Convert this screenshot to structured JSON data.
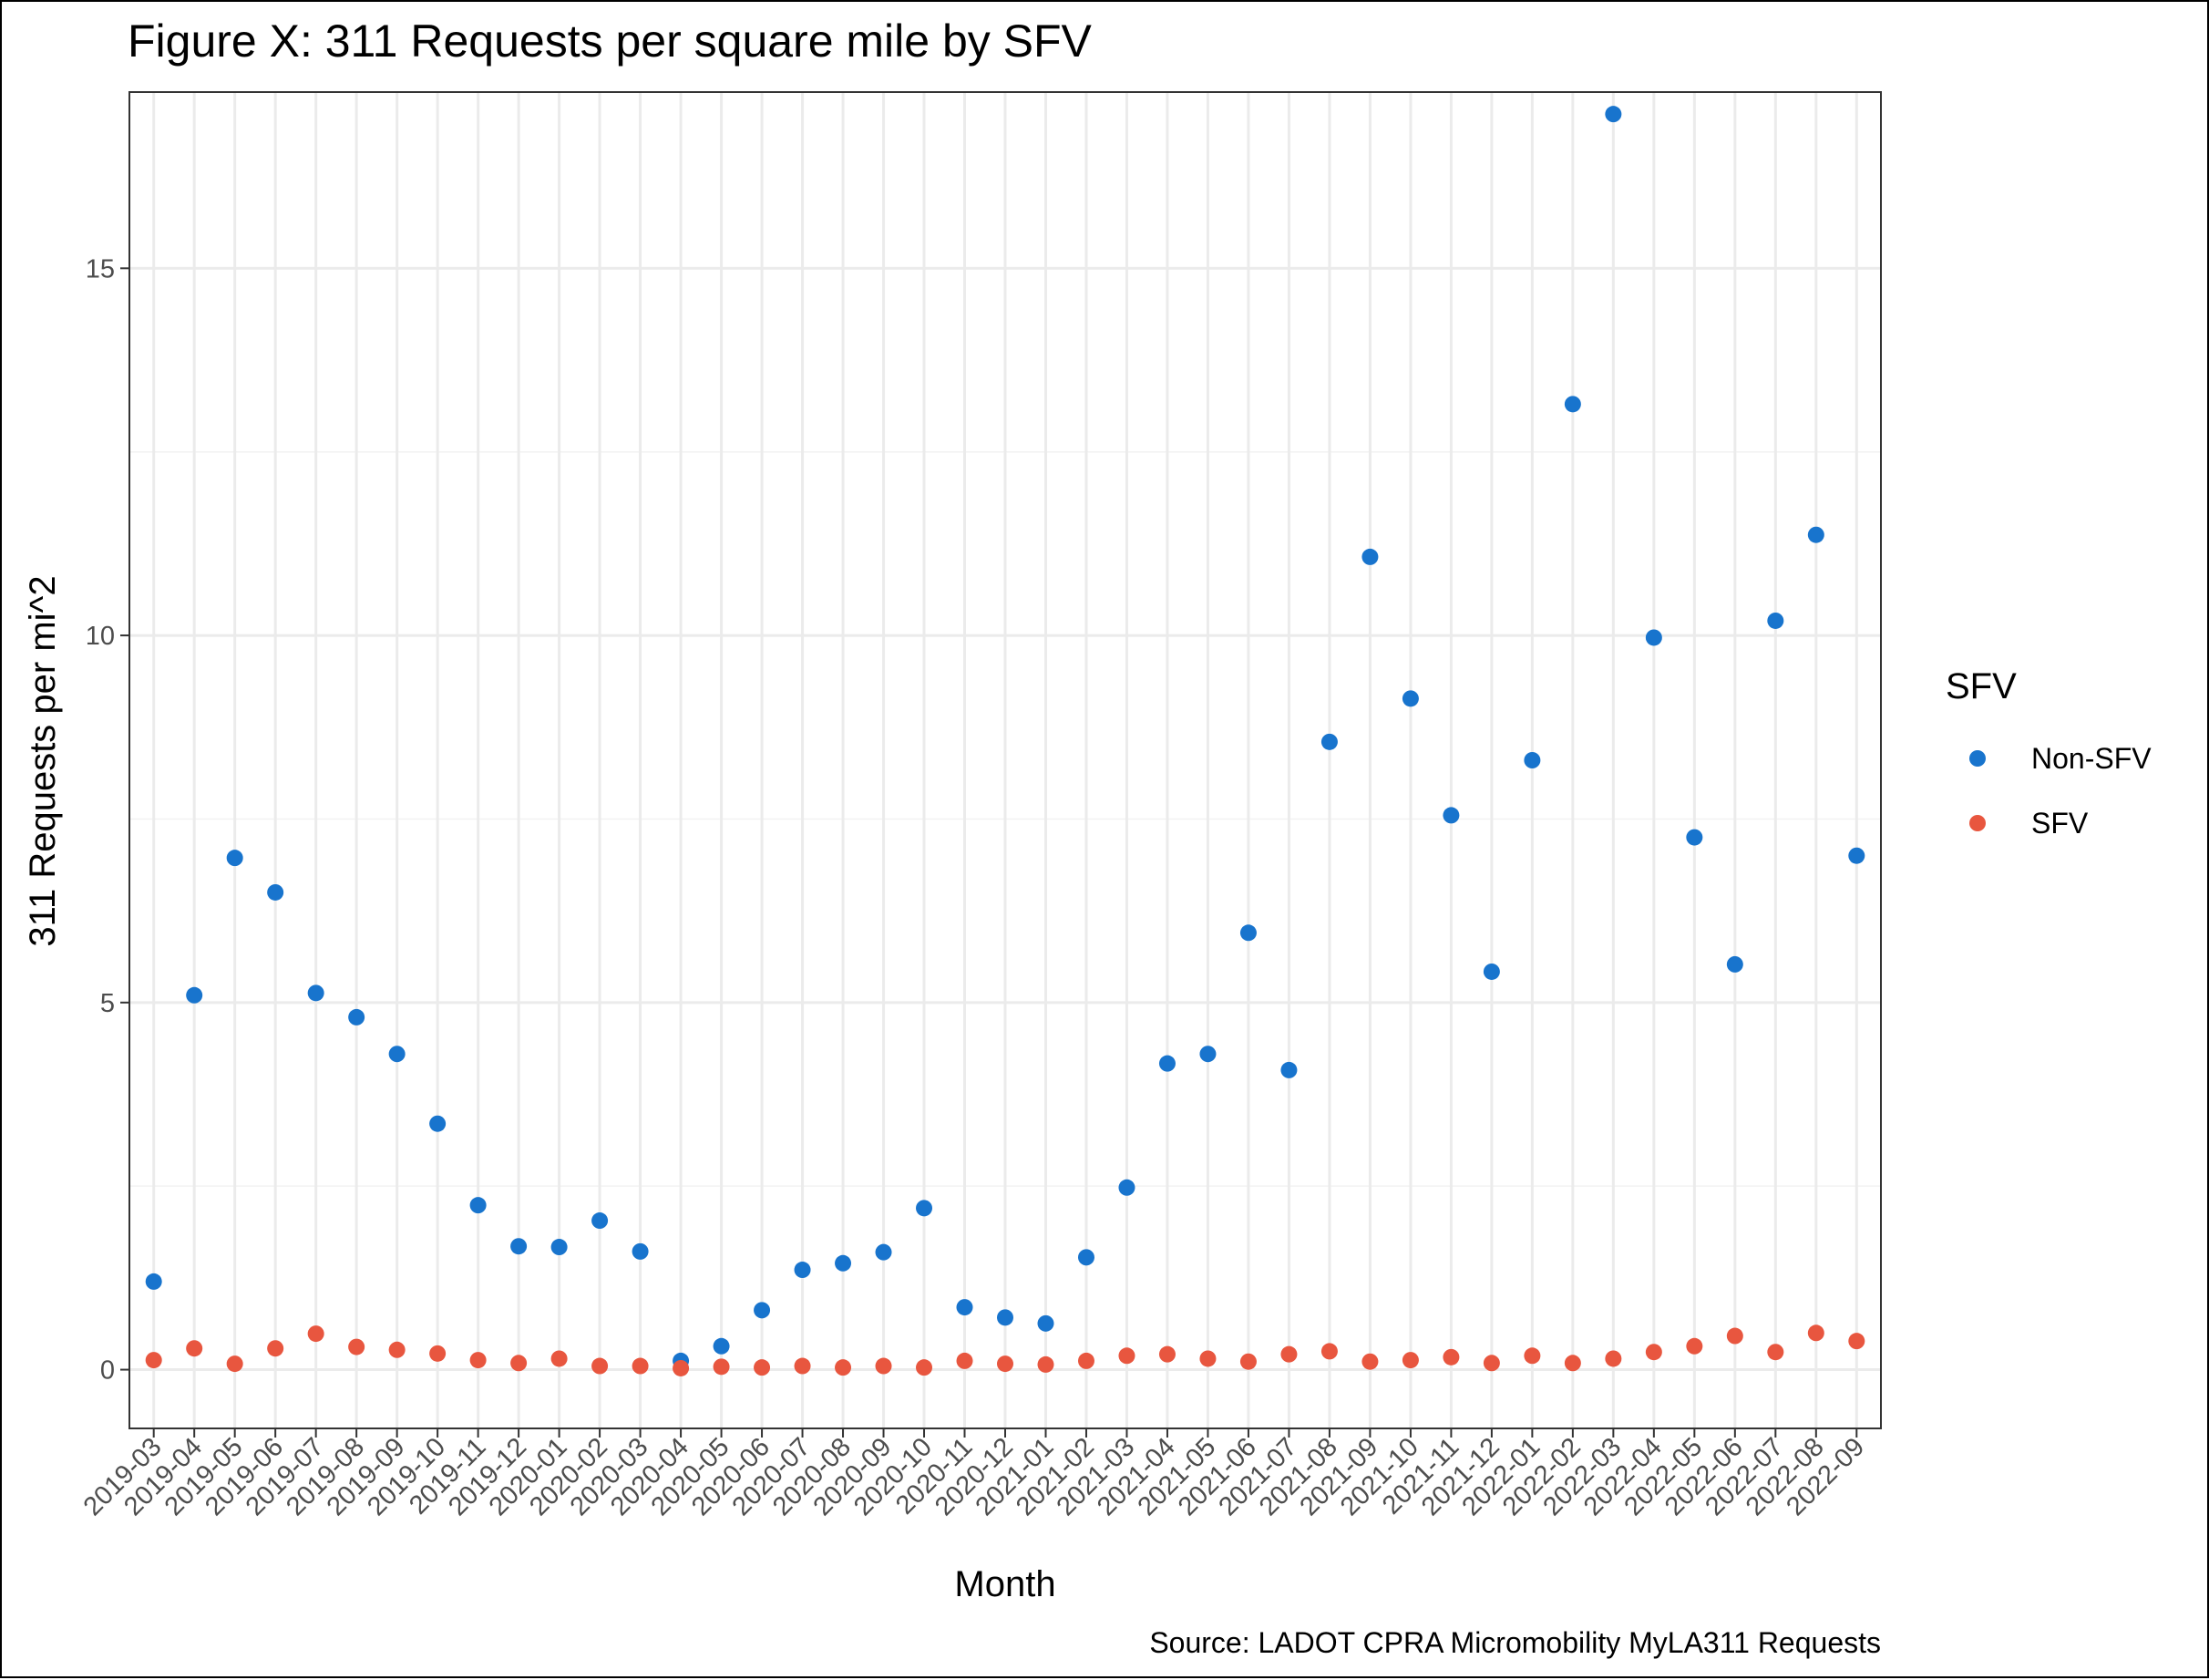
{
  "chart_data": {
    "type": "scatter",
    "title": "Figure X: 311 Requests per square mile by SFV",
    "xlabel": "Month",
    "ylabel": "311 Requests per mi^2",
    "caption": "Source: LADOT CPRA Micromobility MyLA311 Requests",
    "legend_title": "SFV",
    "legend_position": "right",
    "grid": true,
    "ylim": [
      -0.8,
      17.4
    ],
    "yticks": [
      0,
      5,
      10,
      15
    ],
    "categories": [
      "2019-03",
      "2019-04",
      "2019-05",
      "2019-06",
      "2019-07",
      "2019-08",
      "2019-09",
      "2019-10",
      "2019-11",
      "2019-12",
      "2020-01",
      "2020-02",
      "2020-03",
      "2020-04",
      "2020-05",
      "2020-06",
      "2020-07",
      "2020-08",
      "2020-09",
      "2020-10",
      "2020-11",
      "2020-12",
      "2021-01",
      "2021-02",
      "2021-03",
      "2021-04",
      "2021-05",
      "2021-06",
      "2021-07",
      "2021-08",
      "2021-09",
      "2021-10",
      "2021-11",
      "2021-12",
      "2022-01",
      "2022-02",
      "2022-03",
      "2022-04",
      "2022-05",
      "2022-06",
      "2022-07",
      "2022-08",
      "2022-09"
    ],
    "series": [
      {
        "name": "Non-SFV",
        "color": "#1874CD",
        "values": [
          1.2,
          5.1,
          6.97,
          6.5,
          5.13,
          4.8,
          4.3,
          3.35,
          2.24,
          1.68,
          1.67,
          2.03,
          1.61,
          0.12,
          0.32,
          0.81,
          1.36,
          1.45,
          1.6,
          2.2,
          0.85,
          0.71,
          0.63,
          1.53,
          2.48,
          4.17,
          4.3,
          5.95,
          4.08,
          8.55,
          11.07,
          9.14,
          7.55,
          5.42,
          8.3,
          13.15,
          17.1,
          9.97,
          7.25,
          5.52,
          10.2,
          11.37,
          7.0
        ]
      },
      {
        "name": "SFV",
        "color": "#E8563F",
        "values": [
          0.13,
          0.29,
          0.08,
          0.29,
          0.49,
          0.31,
          0.27,
          0.22,
          0.13,
          0.09,
          0.15,
          0.05,
          0.05,
          0.02,
          0.04,
          0.03,
          0.05,
          0.03,
          0.05,
          0.03,
          0.12,
          0.08,
          0.07,
          0.12,
          0.19,
          0.21,
          0.15,
          0.11,
          0.21,
          0.25,
          0.11,
          0.13,
          0.17,
          0.09,
          0.19,
          0.09,
          0.15,
          0.24,
          0.32,
          0.46,
          0.24,
          0.5,
          0.39
        ]
      }
    ]
  }
}
